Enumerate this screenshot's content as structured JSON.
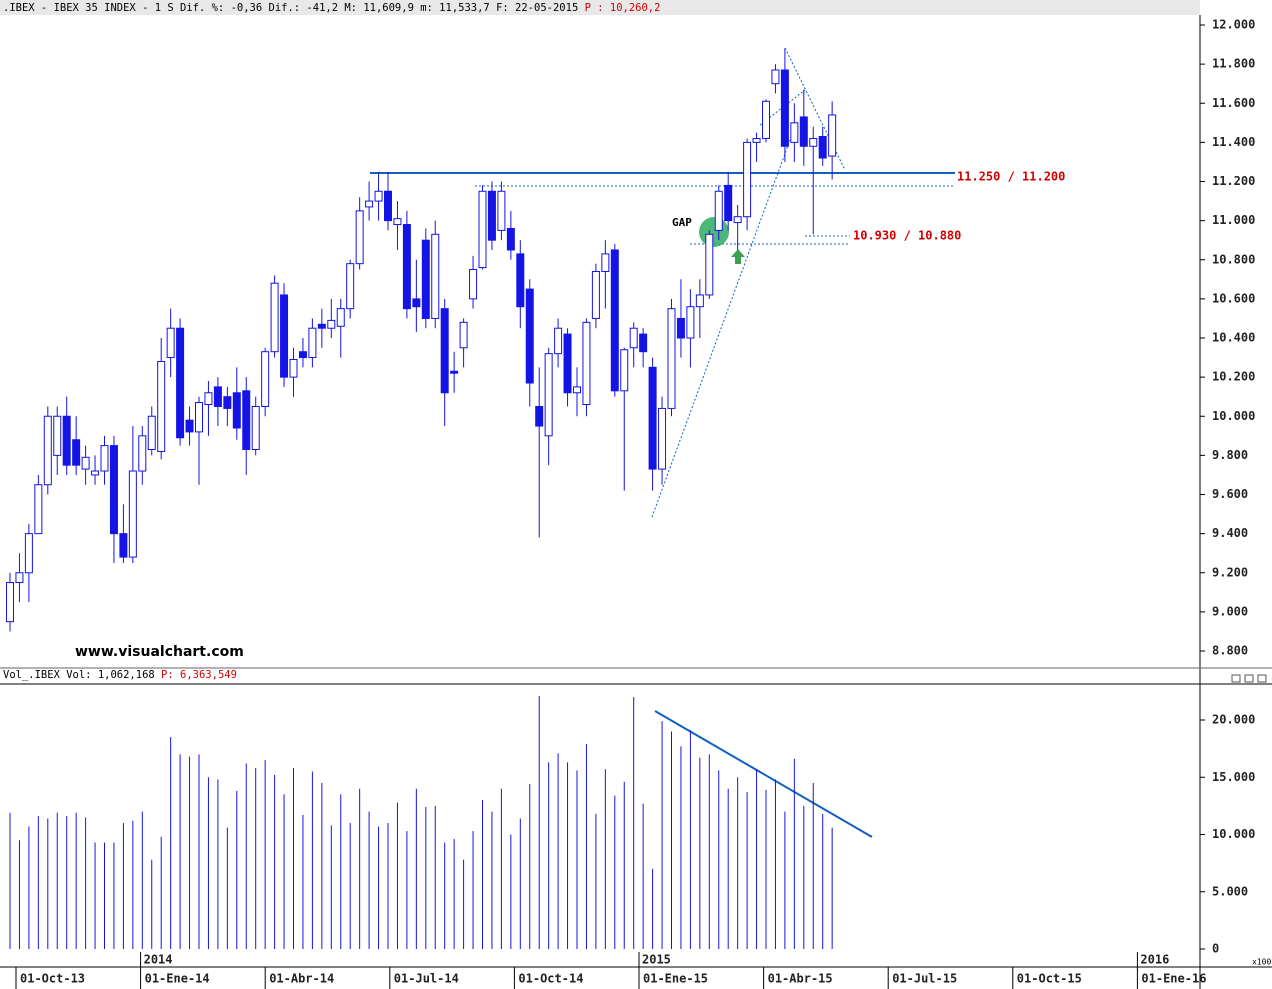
{
  "header": {
    "text": ".IBEX - IBEX 35 INDEX -  1 S Dif. %: -0,36 Dif.: -41,2 M: 11,609,9 m: 11,533,7 F: 22-05-2015",
    "price": "P : 10,260,2"
  },
  "watermark": "www.visualchart.com",
  "annotations": {
    "gap": "GAP",
    "level1": "11.250 / 11.200",
    "level2": "10.930 / 10.880"
  },
  "x_labels": [
    "01-Oct-13",
    "01-Ene-14",
    "01-Abr-14",
    "01-Jul-14",
    "01-Oct-14",
    "01-Ene-15",
    "01-Abr-15",
    "01-Jul-15",
    "01-Oct-15",
    "01-Ene-16"
  ],
  "year_labels": [
    "2014",
    "2015",
    "2016"
  ],
  "chart_data": [
    {
      "type": "candlestick",
      "color_up": "#ffffff",
      "color_down": "#1414e6",
      "color_line": "#1414e6",
      "open": [
        8950,
        9150,
        9200,
        9400,
        9650,
        9800,
        10000,
        9880,
        9730,
        9700,
        9720,
        9850,
        9400,
        9280,
        9720,
        9830,
        9820,
        10300,
        10450,
        9980,
        9920,
        10060,
        10150,
        10100,
        10120,
        10130,
        9830,
        10050,
        10330,
        10620,
        10200,
        10330,
        10300,
        10470,
        10450,
        10460,
        10550,
        10780,
        11070,
        11100,
        11150,
        10980,
        10980,
        10600,
        10900,
        10500,
        10550,
        10230,
        10350,
        10600,
        10760,
        11150,
        10950,
        10960,
        10830,
        10650,
        10050,
        9900,
        10320,
        10420,
        10120,
        10060,
        10500,
        10740,
        10850,
        10130,
        10350,
        10420,
        10250,
        9730,
        10040,
        10500,
        10400,
        10560,
        10620,
        10950,
        11180,
        10990,
        11020,
        11400,
        11420,
        11700,
        11770,
        11400,
        11530,
        11380,
        11430,
        11330
      ],
      "high": [
        9200,
        9300,
        9450,
        9700,
        10050,
        10050,
        10100,
        10000,
        9850,
        9800,
        9900,
        9900,
        9550,
        9950,
        9950,
        10050,
        10400,
        10550,
        10500,
        10050,
        10100,
        10180,
        10200,
        10150,
        10250,
        10200,
        10100,
        10350,
        10720,
        10680,
        10350,
        10400,
        10500,
        10550,
        10600,
        10600,
        10800,
        11120,
        11200,
        11250,
        11250,
        11100,
        11050,
        10800,
        10960,
        11000,
        10600,
        10330,
        10500,
        10820,
        11180,
        11200,
        11200,
        11050,
        10900,
        10700,
        10250,
        10350,
        10500,
        10450,
        10250,
        10500,
        10780,
        10900,
        10880,
        10350,
        10480,
        10450,
        10300,
        10100,
        10600,
        10700,
        10650,
        10700,
        10950,
        11180,
        11250,
        11080,
        11420,
        11450,
        11620,
        11800,
        11880,
        11600,
        11670,
        11480,
        11480,
        11610
      ],
      "low": [
        8900,
        9050,
        9050,
        9400,
        9600,
        9700,
        9700,
        9700,
        9650,
        9650,
        9650,
        9250,
        9250,
        9250,
        9650,
        9800,
        9780,
        10200,
        9850,
        9850,
        9650,
        9900,
        9950,
        9950,
        9880,
        9700,
        9800,
        10000,
        10300,
        10150,
        10100,
        10250,
        10250,
        10350,
        10400,
        10300,
        10500,
        10750,
        11000,
        11000,
        10950,
        10850,
        10500,
        10430,
        10450,
        10450,
        9950,
        10120,
        10250,
        10550,
        10750,
        10850,
        10900,
        10800,
        10450,
        10050,
        9380,
        9750,
        10250,
        10050,
        10000,
        10000,
        10450,
        10550,
        10100,
        9620,
        10250,
        10250,
        9620,
        9650,
        10000,
        10300,
        10250,
        10400,
        10600,
        10900,
        10950,
        10850,
        10950,
        11300,
        11400,
        11650,
        11300,
        11300,
        11280,
        10930,
        11280,
        11210
      ],
      "close": [
        9150,
        9200,
        9400,
        9650,
        10000,
        10000,
        9750,
        9750,
        9790,
        9720,
        9850,
        9400,
        9280,
        9720,
        9900,
        10000,
        10280,
        10450,
        9890,
        9920,
        10070,
        10120,
        10050,
        10040,
        9940,
        9830,
        10050,
        10330,
        10680,
        10200,
        10290,
        10300,
        10450,
        10450,
        10490,
        10550,
        10780,
        11050,
        11100,
        11150,
        11000,
        11010,
        10550,
        10560,
        10500,
        10930,
        10120,
        10220,
        10480,
        10750,
        11150,
        10900,
        11150,
        10850,
        10560,
        10170,
        9950,
        10320,
        10450,
        10120,
        10150,
        10480,
        10740,
        10830,
        10130,
        10340,
        10450,
        10330,
        9730,
        10040,
        10550,
        10400,
        10560,
        10620,
        10930,
        11150,
        11000,
        11020,
        11400,
        11420,
        11610,
        11770,
        11380,
        11500,
        11380,
        11420,
        11320,
        11540
      ],
      "ylim": [
        8800,
        12000
      ],
      "yticks": [
        {
          "value": 8800,
          "label": "8.800"
        },
        {
          "value": 9000,
          "label": "9.000"
        },
        {
          "value": 9200,
          "label": "9.200"
        },
        {
          "value": 9400,
          "label": "9.400"
        },
        {
          "value": 9600,
          "label": "9.600"
        },
        {
          "value": 9800,
          "label": "9.800"
        },
        {
          "value": 10000,
          "label": "10.000"
        },
        {
          "value": 10200,
          "label": "10.200"
        },
        {
          "value": 10400,
          "label": "10.400"
        },
        {
          "value": 10600,
          "label": "10.600"
        },
        {
          "value": 10800,
          "label": "10.800"
        },
        {
          "value": 11000,
          "label": "11.000"
        },
        {
          "value": 11200,
          "label": "11.200"
        },
        {
          "value": 11400,
          "label": "11.400"
        },
        {
          "value": 11600,
          "label": "11.600"
        },
        {
          "value": 11800,
          "label": "11.800"
        },
        {
          "value": 12000,
          "label": "12.000"
        }
      ]
    },
    {
      "type": "bar",
      "title": "Vol_.IBEX Vol: 1,062,168",
      "subtitle": "P: 6,363,549",
      "unit_label": "x100",
      "color": "#1414e6",
      "values": [
        11900,
        9500,
        10700,
        11600,
        11400,
        11900,
        11600,
        11900,
        11500,
        9300,
        9300,
        9300,
        11000,
        11200,
        12000,
        7800,
        9800,
        18500,
        17000,
        16800,
        17000,
        15000,
        14800,
        10600,
        13800,
        16200,
        15800,
        16500,
        15200,
        13500,
        15800,
        11700,
        15500,
        14500,
        10800,
        13500,
        11000,
        14000,
        12000,
        10700,
        11000,
        12800,
        10300,
        14000,
        12400,
        12500,
        9300,
        9600,
        7800,
        10300,
        13000,
        12000,
        14000,
        10000,
        11400,
        14400,
        22100,
        16300,
        17100,
        16300,
        15600,
        17900,
        11800,
        15700,
        13400,
        14600,
        22000,
        12700,
        7000,
        19900,
        19000,
        17700,
        19100,
        16700,
        17000,
        15600,
        14000,
        15000,
        13700,
        15700,
        13900,
        14800,
        12000,
        16600,
        12500,
        14500,
        11800,
        10600
      ],
      "ylim": [
        0,
        22100
      ],
      "yticks": [
        0,
        {
          "value": 5000,
          "label": "5.000"
        },
        {
          "value": 10000,
          "label": "10.000"
        },
        {
          "value": 15000,
          "label": "15.000"
        },
        {
          "value": 20000,
          "label": "20.000"
        }
      ]
    }
  ]
}
